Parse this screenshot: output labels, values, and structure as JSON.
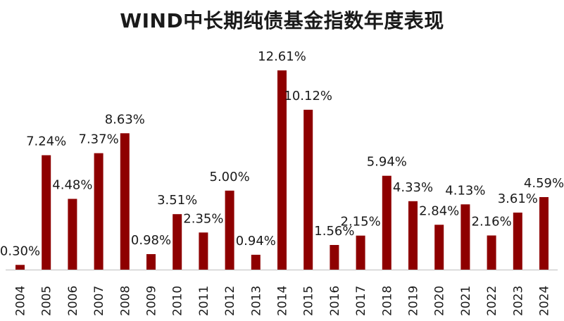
{
  "chart_data": {
    "type": "bar",
    "title": "WIND中长期纯债基金指数年度表现",
    "xlabel": "",
    "ylabel": "",
    "categories": [
      "2004",
      "2005",
      "2006",
      "2007",
      "2008",
      "2009",
      "2010",
      "2011",
      "2012",
      "2013",
      "2014",
      "2015",
      "2016",
      "2017",
      "2018",
      "2019",
      "2020",
      "2021",
      "2022",
      "2023",
      "2024"
    ],
    "values": [
      0.3,
      7.24,
      4.48,
      7.37,
      8.63,
      0.98,
      3.51,
      2.35,
      5.0,
      0.94,
      12.61,
      10.12,
      1.56,
      2.15,
      5.94,
      4.33,
      2.84,
      4.13,
      2.16,
      3.61,
      4.59
    ],
    "data_labels": [
      "0.30%",
      "7.24%",
      "4.48%",
      "7.37%",
      "8.63%",
      "0.98%",
      "3.51%",
      "2.35%",
      "5.00%",
      "0.94%",
      "12.61%",
      "10.12%",
      "1.56%",
      "2.15%",
      "5.94%",
      "4.33%",
      "2.84%",
      "4.13%",
      "2.16%",
      "3.61%",
      "4.59%"
    ],
    "ylim": [
      0,
      12.61
    ],
    "grid": false,
    "legend": "none",
    "bar_color": "#8e0000"
  }
}
